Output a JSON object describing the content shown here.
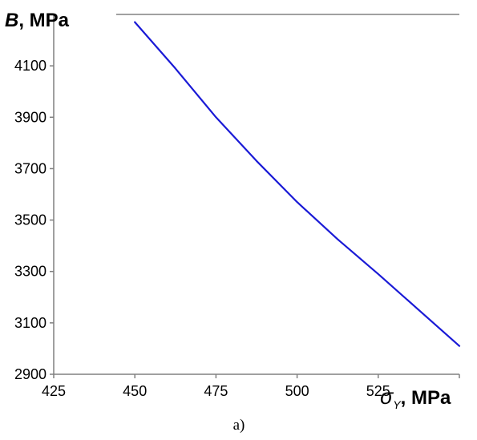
{
  "chart_data": {
    "type": "line",
    "caption": "a)",
    "y_axis_title": {
      "symbol": "B",
      "unit": ", MPa"
    },
    "x_axis_title": {
      "symbol": "σ",
      "subscript": "Y",
      "unit": ", MPa"
    },
    "xlim": [
      425,
      550
    ],
    "ylim": [
      2900,
      4300
    ],
    "x_ticks": [
      425,
      450,
      475,
      500,
      525,
      550
    ],
    "x_tick_labels": [
      "425",
      "450",
      "475",
      "500",
      "525",
      ""
    ],
    "y_ticks": [
      2900,
      3100,
      3300,
      3500,
      3700,
      3900,
      4100
    ],
    "y_tick_labels": [
      "2900",
      "3100",
      "3300",
      "3500",
      "3700",
      "3900",
      "4100"
    ],
    "grid": false,
    "series": [
      {
        "color": "#1a1ad6",
        "x": [
          450,
          462.5,
          475,
          487.5,
          500,
          512.5,
          525,
          537.5,
          550
        ],
        "y": [
          4270,
          4090,
          3900,
          3730,
          3570,
          3425,
          3290,
          3150,
          3010
        ]
      }
    ]
  }
}
